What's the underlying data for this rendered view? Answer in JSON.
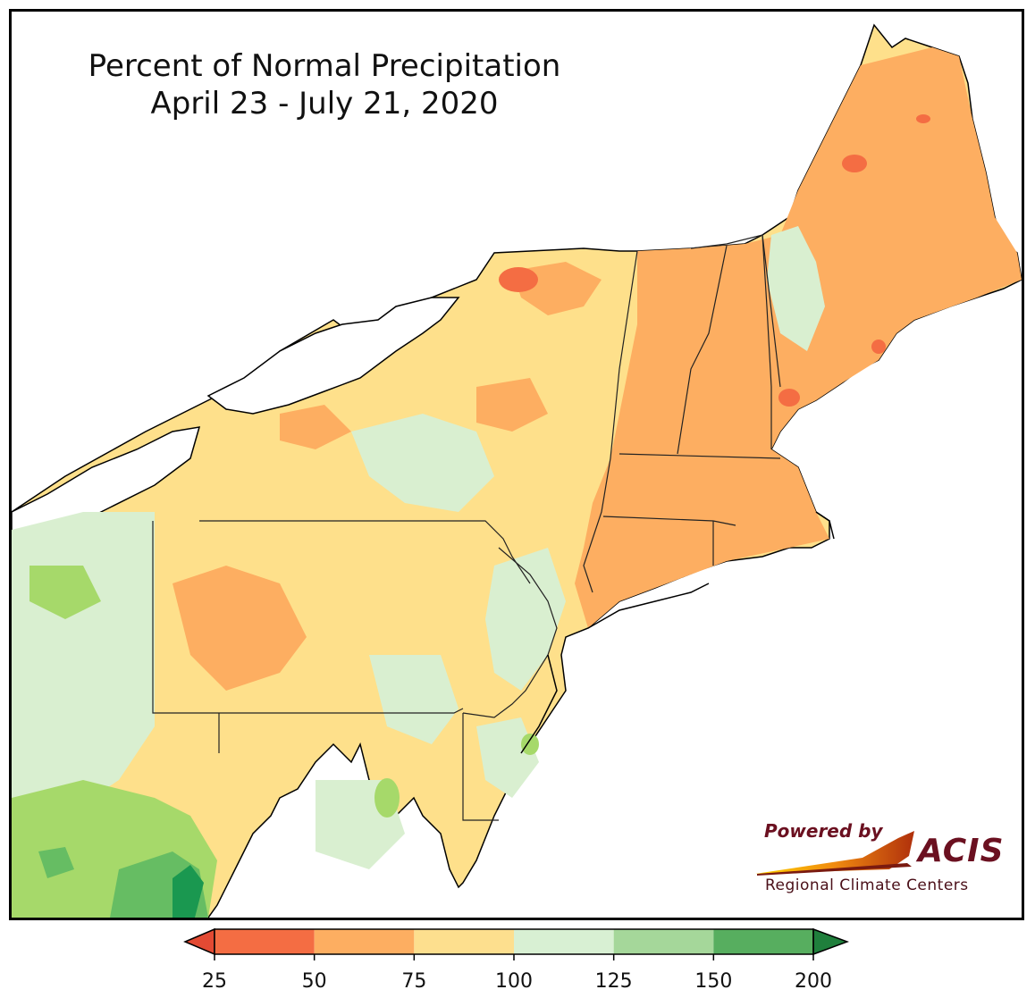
{
  "title": {
    "line1": "Percent of Normal Precipitation",
    "line2": "April 23 - July 21, 2020"
  },
  "map": {
    "region": "Northeast United States",
    "legend_colors": [
      "#f46d43",
      "#fdae61",
      "#fee08b",
      "#d9efd0",
      "#a6d96a",
      "#66bd63",
      "#1a9850"
    ]
  },
  "colorbar": {
    "ticks": [
      "25",
      "50",
      "75",
      "100",
      "125",
      "150",
      "200"
    ],
    "colors": [
      "#f46d43",
      "#fdae61",
      "#fddf8e",
      "#d8f0d3",
      "#a5d79a",
      "#57ae5f"
    ],
    "under_color": "#e34a33",
    "over_color": "#1f7f3c"
  },
  "logo": {
    "powered_by": "Powered by",
    "name": "ACIS",
    "subtitle": "Regional Climate Centers"
  }
}
